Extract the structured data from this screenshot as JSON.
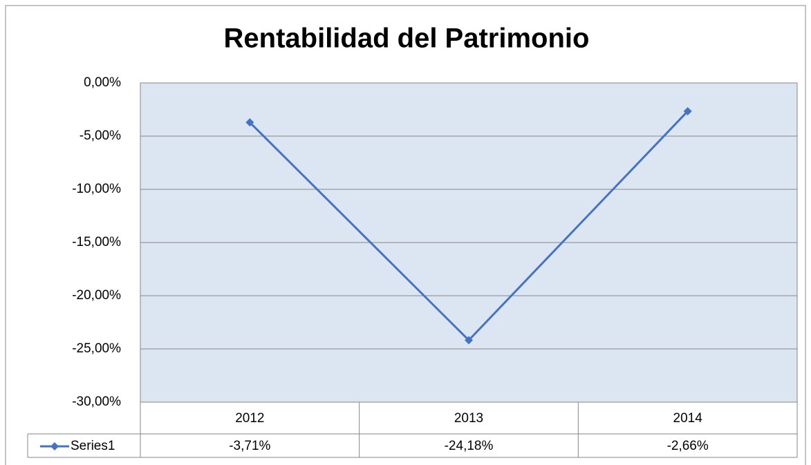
{
  "chart_data": {
    "type": "line",
    "title": "Rentabilidad del Patrimonio",
    "categories": [
      "2012",
      "2013",
      "2014"
    ],
    "series": [
      {
        "name": "Series1",
        "color": "#4472c4",
        "values": [
          -3.71,
          -24.18,
          -2.66
        ],
        "value_labels": [
          "-3,71%",
          "-24,18%",
          "-2,66%"
        ]
      }
    ],
    "ylim": [
      -30,
      0
    ],
    "yticks": [
      {
        "value": 0,
        "label": "0,00%"
      },
      {
        "value": -5,
        "label": "-5,00%"
      },
      {
        "value": -10,
        "label": "-10,00%"
      },
      {
        "value": -15,
        "label": "-15,00%"
      },
      {
        "value": -20,
        "label": "-20,00%"
      },
      {
        "value": -25,
        "label": "-25,00%"
      },
      {
        "value": -30,
        "label": "-30,00%"
      }
    ],
    "grid": true,
    "plot_background": "#dce6f2"
  }
}
